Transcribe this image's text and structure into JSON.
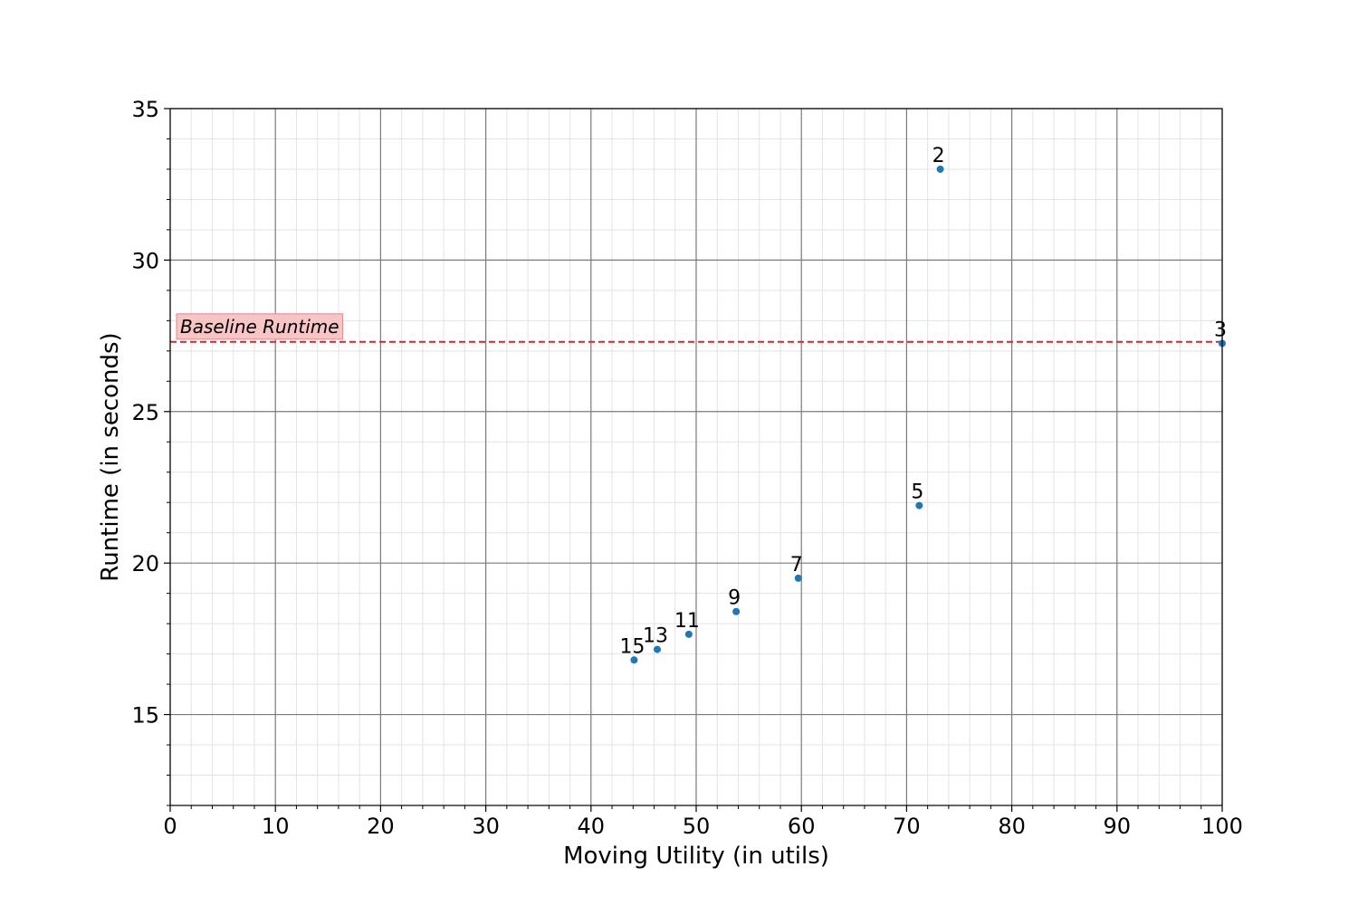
{
  "chart_data": {
    "type": "scatter",
    "title": "",
    "xlabel": "Moving Utility (in utils)",
    "ylabel": "Runtime (in seconds)",
    "xlim": [
      0,
      100
    ],
    "ylim": [
      12,
      35
    ],
    "x_ticks": [
      0,
      10,
      20,
      30,
      40,
      50,
      60,
      70,
      80,
      90,
      100
    ],
    "y_ticks": [
      15,
      20,
      25,
      30,
      35
    ],
    "x_tick_labels": [
      "0",
      "10",
      "20",
      "30",
      "40",
      "50",
      "60",
      "70",
      "80",
      "90",
      "100"
    ],
    "y_tick_labels": [
      "15",
      "20",
      "25",
      "30",
      "35"
    ],
    "grid": true,
    "minor_grid": true,
    "point_color": "#1f77b4",
    "points": [
      {
        "label": "2",
        "x": 73.2,
        "y": 33.0
      },
      {
        "label": "3",
        "x": 100.0,
        "y": 27.25
      },
      {
        "label": "5",
        "x": 71.2,
        "y": 21.9
      },
      {
        "label": "7",
        "x": 59.7,
        "y": 19.5
      },
      {
        "label": "9",
        "x": 53.8,
        "y": 18.4
      },
      {
        "label": "11",
        "x": 49.3,
        "y": 17.65
      },
      {
        "label": "13",
        "x": 46.3,
        "y": 17.15
      },
      {
        "label": "15",
        "x": 44.1,
        "y": 16.8
      }
    ],
    "baseline": {
      "label": "Baseline Runtime",
      "y": 27.3,
      "color": "#d62728"
    }
  }
}
